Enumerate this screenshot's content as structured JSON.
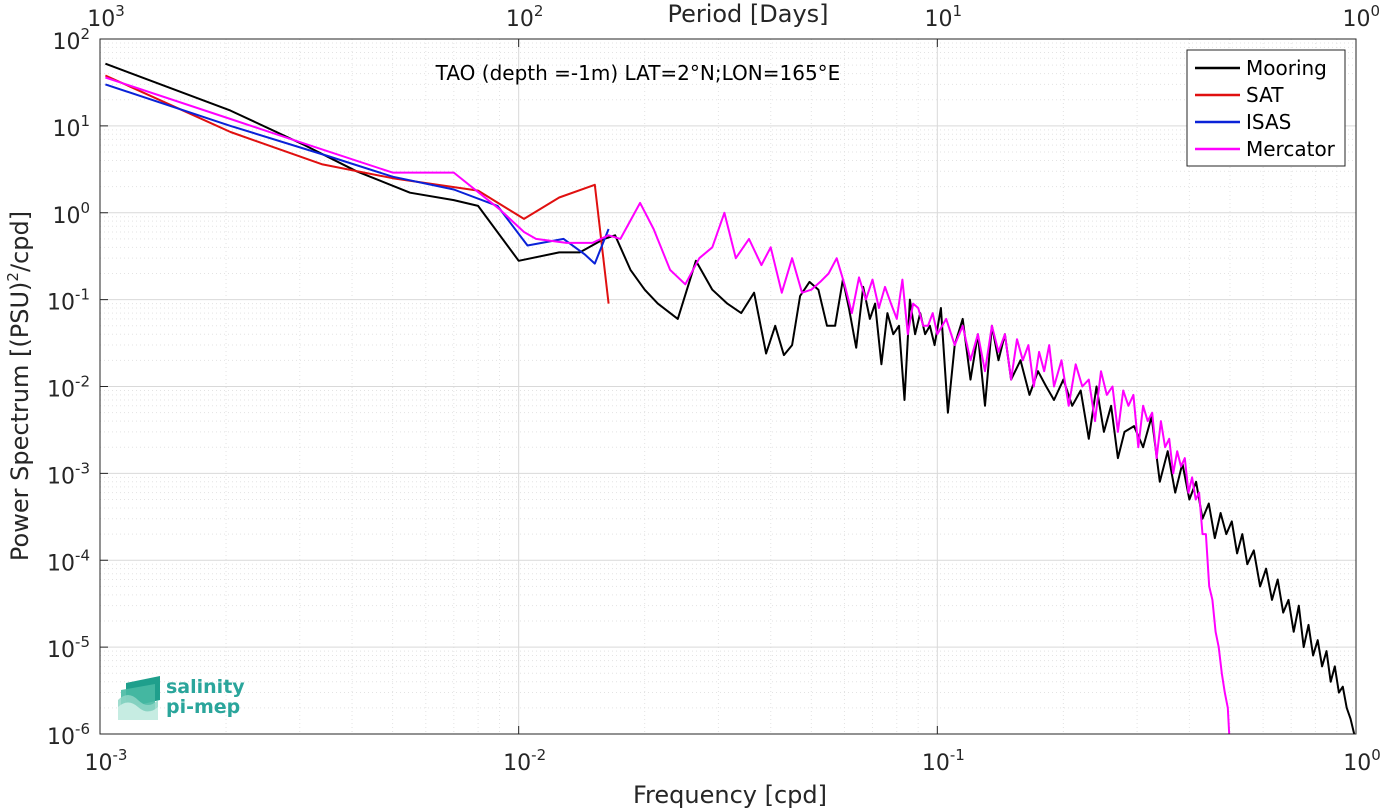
{
  "chart_data": {
    "type": "line",
    "title": "TAO (depth =-1m) LAT=2°N;LON=165°E",
    "xlabel": "Frequency [cpd]",
    "ylabel": "Power Spectrum [(PSU)",
    "ylabel_sup": "2",
    "ylabel_tail": "/cpd]",
    "top_xlabel": "Period [Days]",
    "x_scale": "log",
    "y_scale": "log",
    "xlim": [
      0.001,
      1
    ],
    "ylim": [
      1e-06,
      100
    ],
    "grid": true,
    "minor_grid": true,
    "legend_position": "top-right",
    "x_ticks": [
      {
        "v": 0.001,
        "base": "10",
        "exp": "-3"
      },
      {
        "v": 0.01,
        "base": "10",
        "exp": "-2"
      },
      {
        "v": 0.1,
        "base": "10",
        "exp": "-1"
      },
      {
        "v": 1,
        "base": "10",
        "exp": "0"
      }
    ],
    "y_ticks": [
      {
        "v": 100,
        "base": "10",
        "exp": "2"
      },
      {
        "v": 10,
        "base": "10",
        "exp": "1"
      },
      {
        "v": 1,
        "base": "10",
        "exp": "0"
      },
      {
        "v": 0.1,
        "base": "10",
        "exp": "-1"
      },
      {
        "v": 0.01,
        "base": "10",
        "exp": "-2"
      },
      {
        "v": 0.001,
        "base": "10",
        "exp": "-3"
      },
      {
        "v": 0.0001,
        "base": "10",
        "exp": "-4"
      },
      {
        "v": 1e-05,
        "base": "10",
        "exp": "-5"
      },
      {
        "v": 1e-06,
        "base": "10",
        "exp": "-6"
      }
    ],
    "top_ticks": [
      {
        "v": 0.001,
        "base": "10",
        "exp": "3"
      },
      {
        "v": 0.01,
        "base": "10",
        "exp": "2"
      },
      {
        "v": 0.1,
        "base": "10",
        "exp": "1"
      },
      {
        "v": 1,
        "base": "10",
        "exp": "0"
      }
    ],
    "series": [
      {
        "name": "Mooring",
        "color": "#000000",
        "x": [
          0.00103,
          0.00205,
          0.00308,
          0.0041,
          0.0055,
          0.007,
          0.008,
          0.01,
          0.0125,
          0.014,
          0.016,
          0.017,
          0.0185,
          0.02,
          0.0215,
          0.024,
          0.0265,
          0.029,
          0.0315,
          0.034,
          0.0365,
          0.039,
          0.041,
          0.043,
          0.045,
          0.047,
          0.0495,
          0.052,
          0.0545,
          0.057,
          0.0595,
          0.0615,
          0.064,
          0.0665,
          0.069,
          0.071,
          0.0735,
          0.076,
          0.0785,
          0.081,
          0.0835,
          0.086,
          0.0885,
          0.091,
          0.0935,
          0.096,
          0.0985,
          0.102,
          0.106,
          0.11,
          0.115,
          0.12,
          0.125,
          0.13,
          0.135,
          0.14,
          0.145,
          0.15,
          0.158,
          0.166,
          0.174,
          0.182,
          0.19,
          0.2,
          0.21,
          0.22,
          0.23,
          0.24,
          0.25,
          0.26,
          0.27,
          0.28,
          0.295,
          0.31,
          0.325,
          0.34,
          0.355,
          0.37,
          0.385,
          0.4,
          0.415,
          0.43,
          0.445,
          0.46,
          0.475,
          0.49,
          0.505,
          0.52,
          0.535,
          0.55,
          0.57,
          0.59,
          0.61,
          0.63,
          0.65,
          0.67,
          0.69,
          0.71,
          0.73,
          0.75,
          0.77,
          0.79,
          0.81,
          0.83,
          0.85,
          0.87,
          0.89,
          0.91,
          0.93,
          0.95,
          0.97,
          0.99
        ],
        "y": [
          52,
          15,
          6.0,
          3.0,
          1.7,
          1.4,
          1.2,
          0.28,
          0.35,
          0.35,
          0.5,
          0.55,
          0.22,
          0.13,
          0.09,
          0.06,
          0.28,
          0.13,
          0.09,
          0.07,
          0.12,
          0.024,
          0.05,
          0.023,
          0.03,
          0.11,
          0.16,
          0.13,
          0.05,
          0.05,
          0.17,
          0.08,
          0.028,
          0.14,
          0.06,
          0.09,
          0.018,
          0.07,
          0.04,
          0.05,
          0.007,
          0.1,
          0.04,
          0.07,
          0.04,
          0.05,
          0.03,
          0.08,
          0.005,
          0.03,
          0.06,
          0.012,
          0.04,
          0.006,
          0.05,
          0.02,
          0.04,
          0.012,
          0.02,
          0.008,
          0.015,
          0.01,
          0.007,
          0.012,
          0.006,
          0.009,
          0.0025,
          0.01,
          0.003,
          0.006,
          0.0015,
          0.003,
          0.0035,
          0.002,
          0.0045,
          0.0008,
          0.0018,
          0.0006,
          0.0013,
          0.0005,
          0.0008,
          0.0003,
          0.00045,
          0.00018,
          0.00035,
          0.0002,
          0.00028,
          0.00012,
          0.0002,
          9e-05,
          0.00013,
          5e-05,
          8e-05,
          3.5e-05,
          6e-05,
          2.5e-05,
          3.5e-05,
          1.5e-05,
          3e-05,
          1e-05,
          1.8e-05,
          8e-06,
          1.2e-05,
          6e-06,
          9e-06,
          4e-06,
          6e-06,
          3e-06,
          3.5e-06,
          2e-06,
          1.5e-06,
          1e-06
        ]
      },
      {
        "name": "SAT",
        "color": "#e01010",
        "x": [
          0.00103,
          0.00205,
          0.0034,
          0.005,
          0.008,
          0.0103,
          0.0125,
          0.0152,
          0.0164
        ],
        "y": [
          38,
          8.5,
          3.6,
          2.5,
          1.8,
          0.85,
          1.5,
          2.1,
          0.09
        ]
      },
      {
        "name": "ISAS",
        "color": "#0a22d8",
        "x": [
          0.00103,
          0.00205,
          0.0035,
          0.005,
          0.007,
          0.0089,
          0.0105,
          0.0128,
          0.0144,
          0.0152,
          0.0164
        ],
        "y": [
          30,
          10,
          4.5,
          2.6,
          1.85,
          1.2,
          0.42,
          0.5,
          0.33,
          0.26,
          0.65
        ]
      },
      {
        "name": "Mercator",
        "color": "#ff00ff",
        "x": [
          0.00103,
          0.00205,
          0.003,
          0.005,
          0.007,
          0.009,
          0.0103,
          0.011,
          0.013,
          0.015,
          0.0164,
          0.0175,
          0.0195,
          0.021,
          0.023,
          0.025,
          0.027,
          0.029,
          0.031,
          0.033,
          0.0355,
          0.038,
          0.04,
          0.0425,
          0.045,
          0.0475,
          0.05,
          0.0525,
          0.055,
          0.0575,
          0.06,
          0.0625,
          0.065,
          0.0675,
          0.07,
          0.0725,
          0.075,
          0.0775,
          0.08,
          0.0825,
          0.085,
          0.0875,
          0.09,
          0.0925,
          0.095,
          0.0975,
          0.1,
          0.105,
          0.11,
          0.115,
          0.12,
          0.125,
          0.13,
          0.135,
          0.14,
          0.145,
          0.15,
          0.155,
          0.16,
          0.165,
          0.17,
          0.175,
          0.18,
          0.185,
          0.19,
          0.198,
          0.206,
          0.214,
          0.222,
          0.23,
          0.238,
          0.246,
          0.254,
          0.262,
          0.27,
          0.278,
          0.286,
          0.294,
          0.302,
          0.31,
          0.318,
          0.326,
          0.334,
          0.342,
          0.35,
          0.358,
          0.366,
          0.374,
          0.382,
          0.39,
          0.398,
          0.406,
          0.414,
          0.422,
          0.43,
          0.438,
          0.446,
          0.454,
          0.462,
          0.47,
          0.478,
          0.486,
          0.494,
          0.498
        ],
        "y": [
          36,
          12,
          6.5,
          2.9,
          2.9,
          1.1,
          0.6,
          0.5,
          0.45,
          0.45,
          0.55,
          0.5,
          1.3,
          0.65,
          0.22,
          0.15,
          0.3,
          0.4,
          1.0,
          0.3,
          0.5,
          0.25,
          0.4,
          0.12,
          0.3,
          0.12,
          0.13,
          0.16,
          0.2,
          0.3,
          0.15,
          0.07,
          0.18,
          0.1,
          0.17,
          0.08,
          0.14,
          0.09,
          0.06,
          0.17,
          0.04,
          0.09,
          0.08,
          0.05,
          0.05,
          0.07,
          0.04,
          0.06,
          0.03,
          0.05,
          0.02,
          0.04,
          0.015,
          0.05,
          0.025,
          0.04,
          0.012,
          0.035,
          0.02,
          0.03,
          0.01,
          0.025,
          0.015,
          0.03,
          0.01,
          0.02,
          0.006,
          0.018,
          0.01,
          0.012,
          0.004,
          0.015,
          0.008,
          0.01,
          0.003,
          0.009,
          0.006,
          0.008,
          0.002,
          0.006,
          0.004,
          0.005,
          0.0015,
          0.004,
          0.002,
          0.0025,
          0.001,
          0.0018,
          0.0012,
          0.0015,
          0.0006,
          0.0009,
          0.0005,
          0.0006,
          0.0002,
          0.0002,
          5e-05,
          3.5e-05,
          1.5e-05,
          1e-05,
          5e-06,
          3e-06,
          2e-06,
          1e-06
        ]
      }
    ]
  },
  "logo": {
    "line1": "salinity",
    "line2": "pi-mep"
  }
}
